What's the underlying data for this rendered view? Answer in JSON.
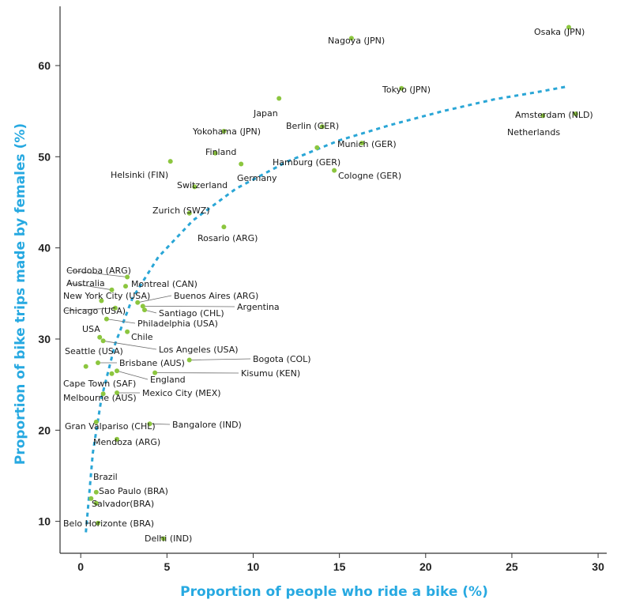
{
  "chart_data": {
    "type": "scatter",
    "title": "",
    "xlabel": "Proportion of people who ride a bike (%)",
    "ylabel": "Proportion of bike trips made by females (%)",
    "xlim": [
      -1.2,
      30.5
    ],
    "ylim": [
      6.5,
      66.5
    ],
    "xticks": [
      0,
      5,
      10,
      15,
      20,
      25,
      30
    ],
    "yticks": [
      10,
      20,
      30,
      40,
      50,
      60
    ],
    "grid": false,
    "colors": {
      "point": "#8cc63f",
      "trend": "#2aa6d6",
      "axis_title": "#27a9e1",
      "axis": "#333333"
    },
    "trendline": {
      "style": "dashed",
      "x": [
        0.3,
        0.7,
        1.2,
        2,
        3,
        4.5,
        6.5,
        9,
        12,
        15,
        18,
        21,
        24,
        26.5,
        28.2
      ],
      "y": [
        8.8,
        17.5,
        23.5,
        29.5,
        34.5,
        39,
        43,
        46.5,
        49.5,
        51.8,
        53.5,
        55,
        56.3,
        57.1,
        57.7
      ]
    },
    "points": [
      {
        "label": "Osaka (JPN)",
        "x": 28.3,
        "y": 64.2
      },
      {
        "label": "Nagoya (JPN)",
        "x": 15.7,
        "y": 63.0
      },
      {
        "label": "Tokyo (JPN)",
        "x": 18.6,
        "y": 57.5
      },
      {
        "label": "Japan",
        "x": 11.5,
        "y": 56.4
      },
      {
        "label": "Amsterdam (NLD)",
        "x": 28.7,
        "y": 54.7
      },
      {
        "label": "Netherlands",
        "x": 26.8,
        "y": 54.5
      },
      {
        "label": "Berlin (GER)",
        "x": 14.0,
        "y": 53.3
      },
      {
        "label": "Yokohama (JPN)",
        "x": 8.3,
        "y": 52.8
      },
      {
        "label": "Munich (GER)",
        "x": 16.3,
        "y": 51.5
      },
      {
        "label": "Hamburg (GER)",
        "x": 13.7,
        "y": 51.0
      },
      {
        "label": "Finland",
        "x": 7.8,
        "y": 50.4
      },
      {
        "label": "Helsinki (FIN)",
        "x": 5.2,
        "y": 49.5
      },
      {
        "label": "Germany",
        "x": 9.3,
        "y": 49.2
      },
      {
        "label": "Cologne (GER)",
        "x": 14.7,
        "y": 48.5
      },
      {
        "label": "Switzerland",
        "x": 6.6,
        "y": 46.7
      },
      {
        "label": "Zurich (SWZ)",
        "x": 6.3,
        "y": 43.8
      },
      {
        "label": "Rosario (ARG)",
        "x": 8.3,
        "y": 42.3
      },
      {
        "label": "Cordoba (ARG)",
        "x": 2.7,
        "y": 36.8
      },
      {
        "label": "Montreal (CAN)",
        "x": 2.6,
        "y": 35.8
      },
      {
        "label": "Australia",
        "x": 1.8,
        "y": 35.4
      },
      {
        "label": "New York City (USA)",
        "x": 1.2,
        "y": 34.2
      },
      {
        "label": "Buenos Aires (ARG)",
        "x": 3.3,
        "y": 34.0
      },
      {
        "label": "Argentina",
        "x": 3.6,
        "y": 33.6
      },
      {
        "label": "Chicago (USA)",
        "x": 2.0,
        "y": 33.4
      },
      {
        "label": "Santiago (CHL)",
        "x": 3.7,
        "y": 33.2
      },
      {
        "label": "Philadelphia (USA)",
        "x": 1.5,
        "y": 32.2
      },
      {
        "label": "Chile",
        "x": 2.7,
        "y": 30.8
      },
      {
        "label": "USA",
        "x": 1.1,
        "y": 30.2
      },
      {
        "label": "Los Angeles (USA)",
        "x": 1.3,
        "y": 29.8
      },
      {
        "label": "Bogota (COL)",
        "x": 6.3,
        "y": 27.7
      },
      {
        "label": "Seattle (USA)",
        "x": 0.3,
        "y": 27.0
      },
      {
        "label": "Brisbane (AUS)",
        "x": 1.0,
        "y": 27.4
      },
      {
        "label": "Kisumu (KEN)",
        "x": 4.3,
        "y": 26.3
      },
      {
        "label": "England",
        "x": 2.1,
        "y": 26.5
      },
      {
        "label": "Cape Town (SAF)",
        "x": 1.8,
        "y": 26.2
      },
      {
        "label": "Mexico City (MEX)",
        "x": 2.1,
        "y": 24.1
      },
      {
        "label": "Melbourne (AUS)",
        "x": 1.3,
        "y": 24.0
      },
      {
        "label": "Bangalore (IND)",
        "x": 4.0,
        "y": 20.7
      },
      {
        "label": "Gran Valpariso (CHL)",
        "x": 0.9,
        "y": 20.9
      },
      {
        "label": "Mendoza (ARG)",
        "x": 2.1,
        "y": 19.0
      },
      {
        "label": "Brazil",
        "x": 0.9,
        "y": 13.2
      },
      {
        "label": "Sao Paulo (BRA)",
        "x": 0.6,
        "y": 12.5
      },
      {
        "label": "Salvador(BRA)",
        "x": 0.9,
        "y": 12.0
      },
      {
        "label": "Belo Horizonte (BRA)",
        "x": 1.0,
        "y": 9.8
      },
      {
        "label": "Delhi (IND)",
        "x": 4.8,
        "y": 8.1
      }
    ]
  }
}
